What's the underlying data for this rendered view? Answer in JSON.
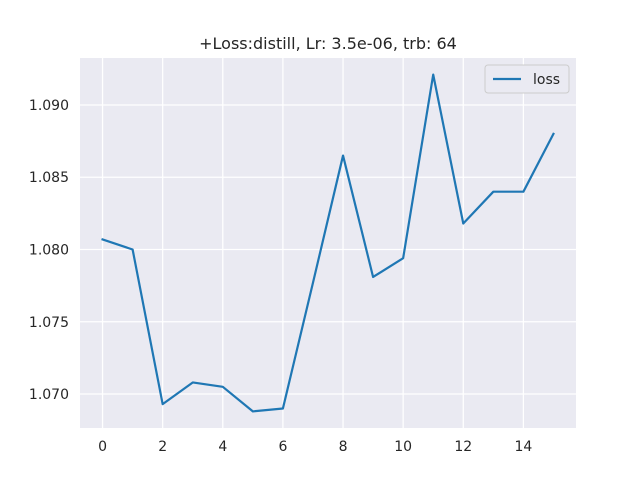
{
  "chart_data": {
    "type": "line",
    "title": "+Loss:distill, Lr: 3.5e-06, trb: 64",
    "xlabel": "",
    "ylabel": "",
    "x": [
      0,
      1,
      2,
      3,
      4,
      5,
      6,
      7,
      8,
      9,
      10,
      11,
      12,
      13,
      14,
      15
    ],
    "series": [
      {
        "name": "loss",
        "color": "#1f77b4",
        "values": [
          1.0807,
          1.08,
          1.0693,
          1.0708,
          1.0705,
          1.0688,
          1.069,
          1.0777,
          1.0865,
          1.0781,
          1.0794,
          1.0921,
          1.0818,
          1.084,
          1.084,
          1.088
        ]
      }
    ],
    "xlim": [
      -0.75,
      15.75
    ],
    "ylim": [
      1.06765,
      1.09325
    ],
    "xticks": [
      0,
      2,
      4,
      6,
      8,
      10,
      12,
      14
    ],
    "xtick_labels": [
      "0",
      "2",
      "4",
      "6",
      "8",
      "10",
      "12",
      "14"
    ],
    "yticks": [
      1.07,
      1.075,
      1.08,
      1.085,
      1.09
    ],
    "ytick_labels": [
      "1.070",
      "1.075",
      "1.080",
      "1.085",
      "1.090"
    ],
    "grid": true,
    "legend_position": "top-right",
    "background": "#eaeaf2",
    "grid_color": "#ffffff"
  }
}
